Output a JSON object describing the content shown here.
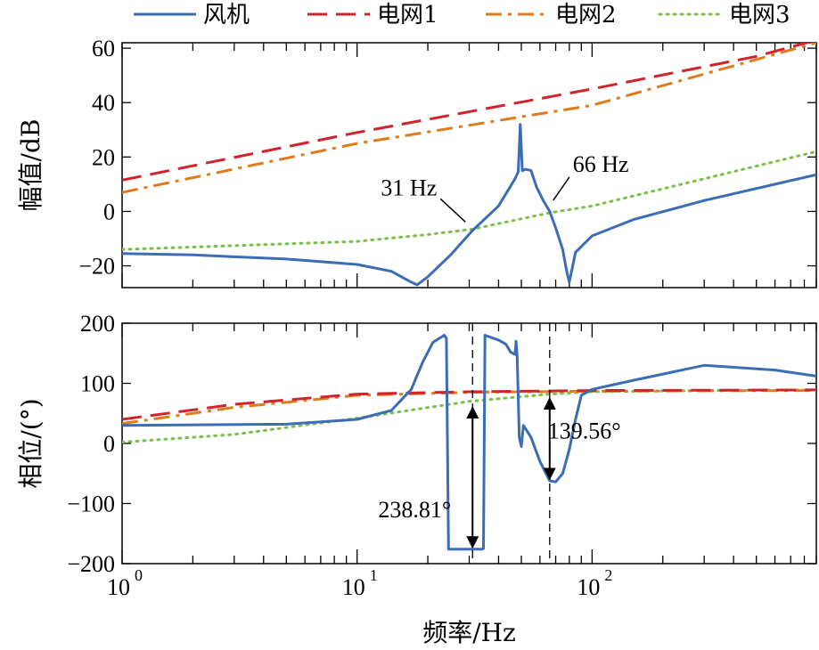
{
  "chart_data": {
    "type": "line",
    "xscale": "log",
    "xlim": [
      1,
      900
    ],
    "xlabel": "频率/Hz",
    "x_ticks": [
      {
        "base": "10",
        "exp": "0",
        "value": 1
      },
      {
        "base": "10",
        "exp": "1",
        "value": 10
      },
      {
        "base": "10",
        "exp": "2",
        "value": 100
      }
    ],
    "legend": {
      "placement": "top",
      "entries": [
        {
          "name": "风机",
          "color": "#3a6db5",
          "style": "solid"
        },
        {
          "name": "电网1",
          "color": "#d2232a",
          "style": "dashed"
        },
        {
          "name": "电网2",
          "color": "#e07b1c",
          "style": "dashdot"
        },
        {
          "name": "电网3",
          "color": "#7cc04b",
          "style": "dotted"
        }
      ]
    },
    "panels": [
      {
        "id": "magnitude",
        "ylabel": "幅值/dB",
        "ylim": [
          -28,
          62
        ],
        "yticks": [
          -20,
          0,
          20,
          40,
          60
        ],
        "series": [
          {
            "name": "风机",
            "x": [
              1,
              2,
              5,
              10,
              14,
              17,
              18,
              20,
              25,
              31,
              40,
              47,
              48.5,
              49.5,
              50.5,
              52,
              55,
              58,
              62,
              66,
              70,
              75,
              78,
              80,
              85,
              100,
              150,
              300,
              900
            ],
            "y": [
              -15.5,
              -16,
              -17.5,
              -19.5,
              -22,
              -26,
              -27,
              -24,
              -16,
              -7,
              2,
              12,
              14.5,
              32,
              15,
              15.5,
              15,
              9,
              4,
              0,
              -6,
              -14,
              -22,
              -26,
              -15,
              -9,
              -3,
              4,
              13.5
            ]
          },
          {
            "name": "电网1",
            "x": [
              1,
              10,
              100,
              500,
              900
            ],
            "y": [
              11.5,
              29,
              45,
              57,
              63
            ]
          },
          {
            "name": "电网2",
            "x": [
              1,
              10,
              100,
              900
            ],
            "y": [
              7,
              25,
              39,
              62
            ]
          },
          {
            "name": "电网3",
            "x": [
              1,
              10,
              20,
              31,
              66,
              100,
              900
            ],
            "y": [
              -14,
              -11,
              -8.5,
              -6.5,
              -0.5,
              2,
              22
            ]
          }
        ],
        "annotations": [
          {
            "text": "31 Hz",
            "x": 31,
            "y": -6.5
          },
          {
            "text": "66 Hz",
            "x": 66,
            "y": -0.5
          }
        ]
      },
      {
        "id": "phase",
        "ylabel": "相位/(°)",
        "ylim": [
          -200,
          200
        ],
        "yticks": [
          -200,
          -100,
          0,
          100,
          200
        ],
        "series": [
          {
            "name": "风机",
            "x": [
              1,
              5,
              10,
              14,
              17,
              19,
              21,
              23.5,
              24,
              24.5,
              30,
              34,
              34.5,
              35,
              40,
              43,
              45,
              47,
              47.5,
              48,
              49,
              50,
              51,
              52,
              55,
              60,
              66,
              70,
              75,
              80,
              85,
              90,
              100,
              150,
              300,
              600,
              900
            ],
            "y": [
              30,
              32,
              40,
              55,
              90,
              135,
              168,
              180,
              175,
              -176,
              -176,
              -176,
              -175,
              180,
              172,
              165,
              152,
              148,
              170,
              145,
              10,
              -5,
              30,
              25,
              10,
              -30,
              -62,
              -64,
              -50,
              -10,
              40,
              80,
              90,
              105,
              130,
              122,
              112
            ]
          },
          {
            "name": "电网1",
            "x": [
              1,
              3,
              10,
              30,
              100,
              900
            ],
            "y": [
              40,
              65,
              82,
              86,
              88,
              89
            ]
          },
          {
            "name": "电网2",
            "x": [
              1,
              3,
              10,
              30,
              100,
              900
            ],
            "y": [
              33,
              60,
              80,
              85,
              87,
              88
            ]
          },
          {
            "name": "电网3",
            "x": [
              1,
              3,
              10,
              30,
              66,
              100,
              300,
              900
            ],
            "y": [
              2,
              15,
              42,
              70,
              82,
              86,
              88,
              89
            ]
          }
        ],
        "annotations": [
          {
            "text": "238.81°",
            "x": 31,
            "y_from": -176,
            "y_to": 63
          },
          {
            "text": "139.56°",
            "x": 66,
            "y_from": -62,
            "y_to": 78
          }
        ]
      }
    ]
  }
}
